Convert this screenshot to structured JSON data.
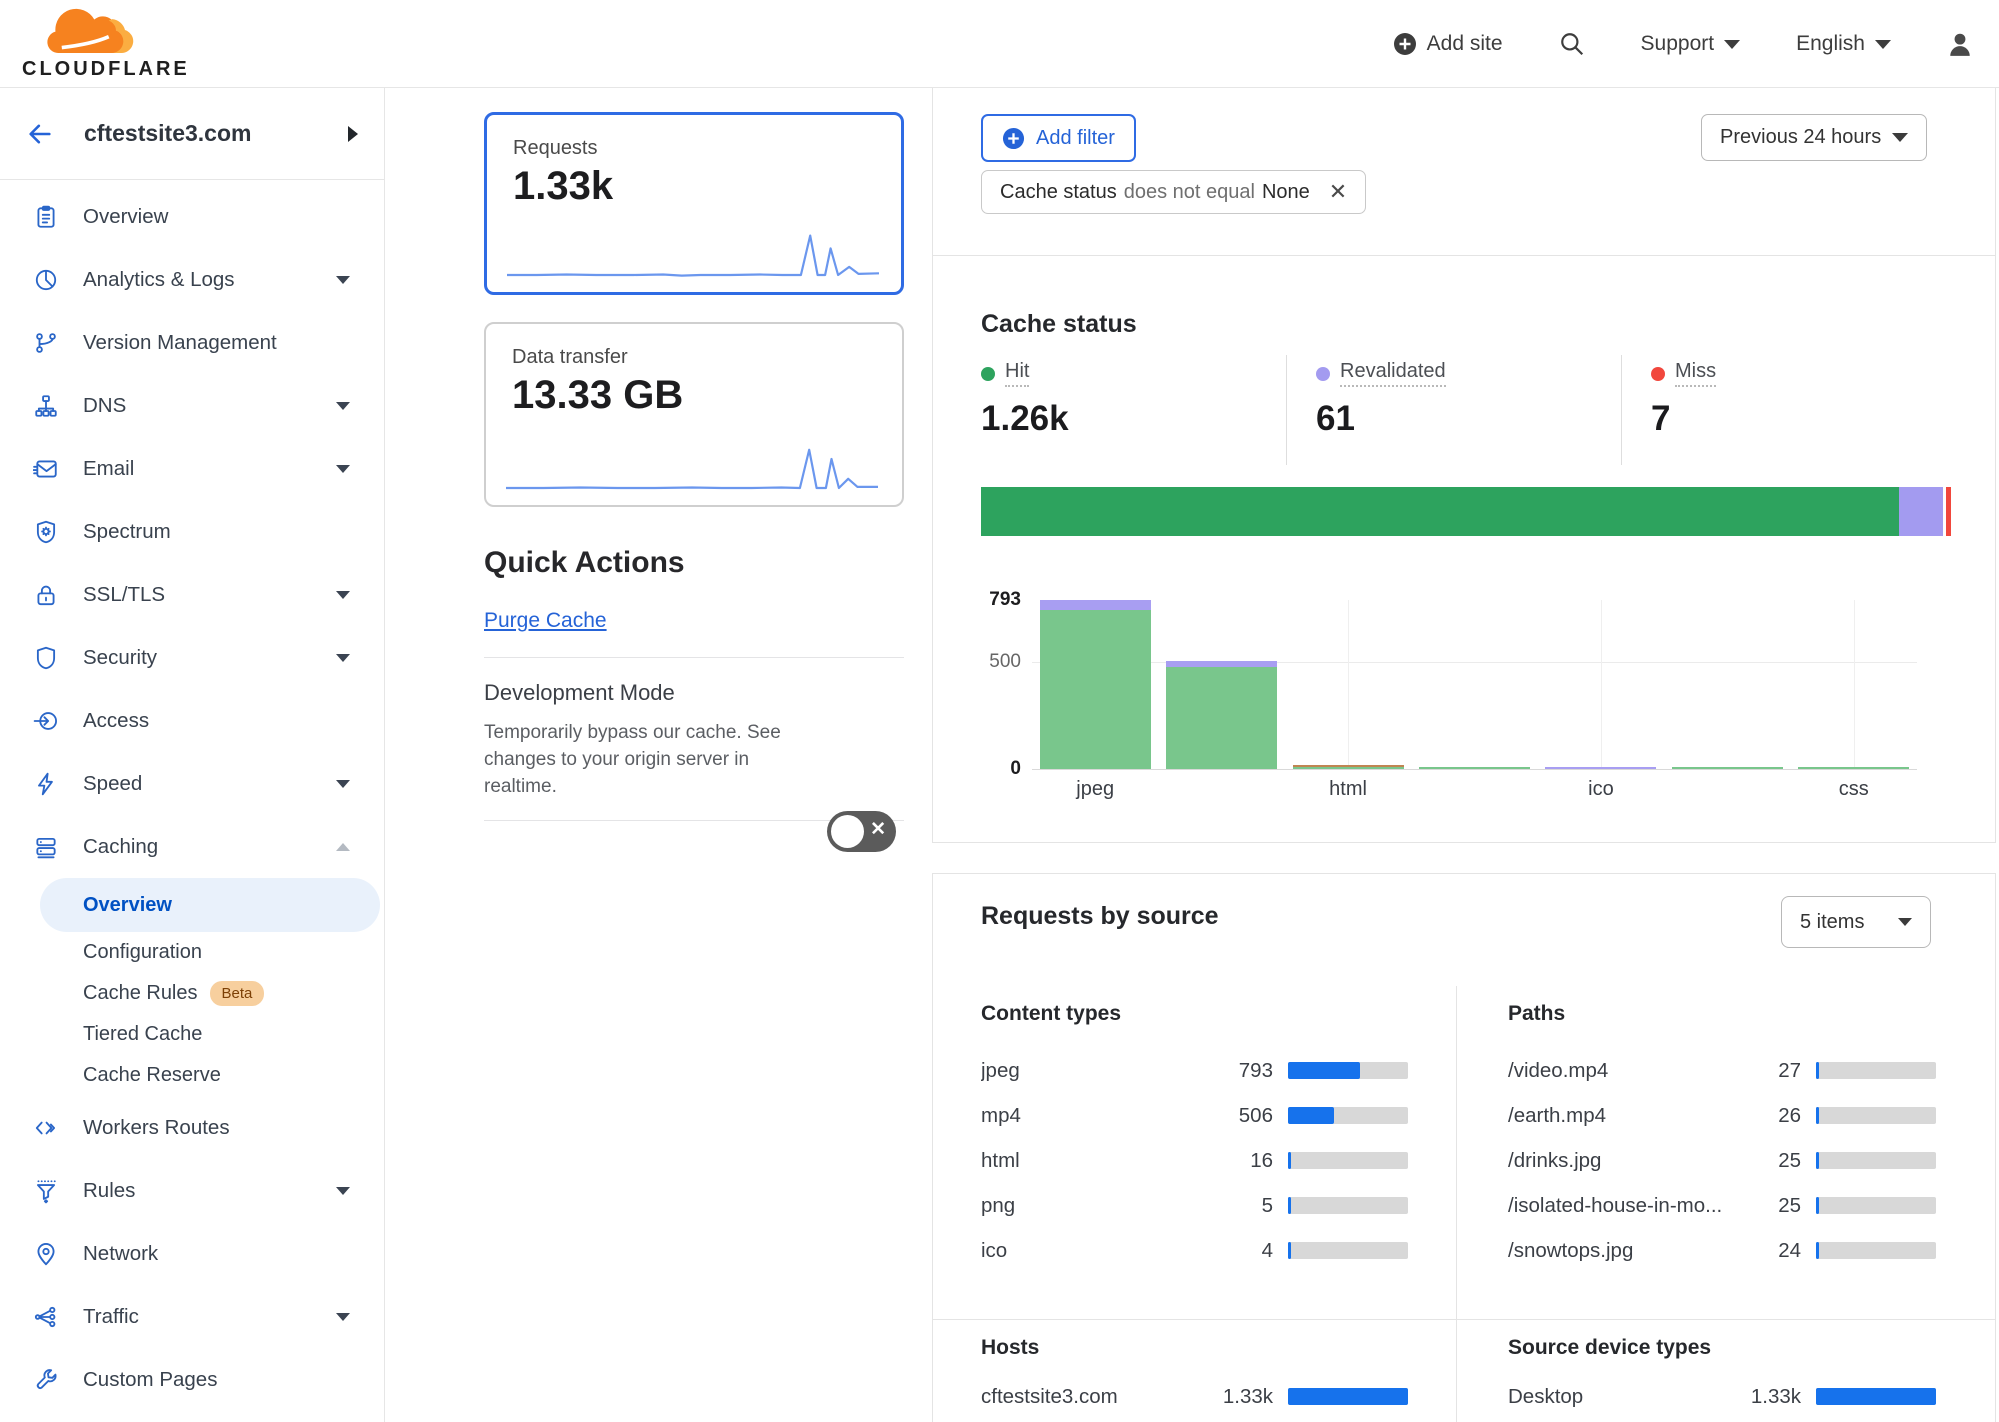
{
  "header": {
    "logo": "CLOUDFLARE",
    "add_site": "Add site",
    "support": "Support",
    "language": "English"
  },
  "sidebar": {
    "site_name": "cftestsite3.com",
    "nav": [
      {
        "label": "Overview",
        "icon": "clipboard"
      },
      {
        "label": "Analytics & Logs",
        "icon": "pie",
        "caret": "down"
      },
      {
        "label": "Version Management",
        "icon": "branch"
      },
      {
        "label": "DNS",
        "icon": "sitemap",
        "caret": "down"
      },
      {
        "label": "Email",
        "icon": "email",
        "caret": "down"
      },
      {
        "label": "Spectrum",
        "icon": "spectrum"
      },
      {
        "label": "SSL/TLS",
        "icon": "lock",
        "caret": "down"
      },
      {
        "label": "Security",
        "icon": "shield",
        "caret": "down"
      },
      {
        "label": "Access",
        "icon": "access"
      },
      {
        "label": "Speed",
        "icon": "bolt",
        "caret": "down"
      },
      {
        "label": "Caching",
        "icon": "cache",
        "caret": "up",
        "sub": [
          {
            "label": "Overview",
            "active": true
          },
          {
            "label": "Configuration"
          },
          {
            "label": "Cache Rules",
            "badge": "Beta"
          },
          {
            "label": "Tiered Cache"
          },
          {
            "label": "Cache Reserve"
          }
        ]
      },
      {
        "label": "Workers Routes",
        "icon": "code"
      },
      {
        "label": "Rules",
        "icon": "funnel",
        "caret": "down"
      },
      {
        "label": "Network",
        "icon": "pin"
      },
      {
        "label": "Traffic",
        "icon": "share",
        "caret": "down"
      },
      {
        "label": "Custom Pages",
        "icon": "wrench"
      }
    ]
  },
  "metrics": {
    "requests": {
      "label": "Requests",
      "value": "1.33k",
      "selected": true,
      "spark": [
        [
          0,
          88
        ],
        [
          8,
          88
        ],
        [
          16,
          87
        ],
        [
          24,
          88
        ],
        [
          34,
          88
        ],
        [
          42,
          87
        ],
        [
          47,
          89
        ],
        [
          52,
          88
        ],
        [
          60,
          88
        ],
        [
          68,
          87
        ],
        [
          74,
          88
        ],
        [
          79,
          88
        ],
        [
          81.5,
          20
        ],
        [
          83.5,
          88
        ],
        [
          85.5,
          88
        ],
        [
          87,
          42
        ],
        [
          89,
          88
        ],
        [
          92,
          74
        ],
        [
          94.5,
          86
        ],
        [
          100,
          85
        ]
      ]
    },
    "data_transfer": {
      "label": "Data transfer",
      "value": "13.33 GB",
      "spark": [
        [
          0,
          88
        ],
        [
          10,
          88
        ],
        [
          20,
          87
        ],
        [
          30,
          88
        ],
        [
          40,
          88
        ],
        [
          50,
          87
        ],
        [
          58,
          88
        ],
        [
          66,
          88
        ],
        [
          74,
          87
        ],
        [
          79,
          88
        ],
        [
          81.5,
          22
        ],
        [
          83.5,
          88
        ],
        [
          86,
          88
        ],
        [
          87.5,
          38
        ],
        [
          89.5,
          88
        ],
        [
          92,
          72
        ],
        [
          94.5,
          86
        ],
        [
          100,
          86
        ]
      ]
    }
  },
  "quick_actions": {
    "title": "Quick Actions",
    "purge_link": "Purge Cache",
    "dev_mode_title": "Development Mode",
    "dev_mode_desc": "Temporarily bypass our cache. See changes to your origin server in realtime.",
    "dev_mode_enabled": false
  },
  "filter_bar": {
    "add_filter": "Add filter",
    "chip_field": "Cache status",
    "chip_operator": "does not equal",
    "chip_value": "None",
    "time_range": "Previous 24 hours"
  },
  "cache_status": {
    "title": "Cache status",
    "legend": [
      {
        "label": "Hit",
        "value": "1.26k",
        "color": "#2da35e"
      },
      {
        "label": "Revalidated",
        "value": "61",
        "color": "#a39bf0"
      },
      {
        "label": "Miss",
        "value": "7",
        "color": "#f1473d"
      }
    ],
    "distribution_pct": [
      94.9,
      4.6,
      0.5
    ]
  },
  "chart_data": {
    "type": "bar",
    "stacked": true,
    "categories": [
      "jpeg",
      "",
      "html",
      "",
      "ico",
      "",
      "css"
    ],
    "series": [
      {
        "name": "Hit",
        "color": "#79c68c",
        "values": [
          748,
          478,
          8,
          5,
          0,
          1,
          1
        ]
      },
      {
        "name": "Other",
        "color": "#c08552",
        "values": [
          0,
          0,
          8,
          0,
          0,
          0,
          0
        ]
      },
      {
        "name": "Revalidated",
        "color": "#a89ef2",
        "values": [
          45,
          28,
          0,
          0,
          4,
          0,
          0
        ]
      }
    ],
    "yticks": [
      0,
      500,
      793
    ],
    "ylim": [
      0,
      793
    ],
    "legend_position": "none",
    "grid": true
  },
  "requests_by_source": {
    "title": "Requests by source",
    "items_selector": "5 items",
    "sections": [
      {
        "title": "Content types",
        "rows": [
          {
            "label": "jpeg",
            "value": "793",
            "pct": 59.7
          },
          {
            "label": "mp4",
            "value": "506",
            "pct": 38.1
          },
          {
            "label": "html",
            "value": "16",
            "pct": 1.2
          },
          {
            "label": "png",
            "value": "5",
            "pct": 0.4
          },
          {
            "label": "ico",
            "value": "4",
            "pct": 0.3
          }
        ]
      },
      {
        "title": "Paths",
        "rows": [
          {
            "label": "/video.mp4",
            "value": "27",
            "pct": 2.0
          },
          {
            "label": "/earth.mp4",
            "value": "26",
            "pct": 2.0
          },
          {
            "label": "/drinks.jpg",
            "value": "25",
            "pct": 1.9
          },
          {
            "label": "/isolated-house-in-mo...",
            "value": "25",
            "pct": 1.9
          },
          {
            "label": "/snowtops.jpg",
            "value": "24",
            "pct": 1.8
          }
        ]
      },
      {
        "title": "Hosts",
        "rows": [
          {
            "label": "cftestsite3.com",
            "value": "1.33k",
            "pct": 100
          }
        ]
      },
      {
        "title": "Source device types",
        "rows": [
          {
            "label": "Desktop",
            "value": "1.33k",
            "pct": 100
          }
        ]
      }
    ]
  }
}
